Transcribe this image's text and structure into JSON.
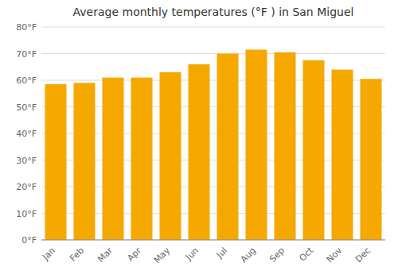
{
  "chart_data": {
    "type": "bar",
    "title": "Average monthly temperatures (°F ) in San Miguel",
    "categories": [
      "Jan",
      "Feb",
      "Mar",
      "Apr",
      "May",
      "Jun",
      "Jul",
      "Aug",
      "Sep",
      "Oct",
      "Nov",
      "Dec"
    ],
    "values": [
      58.5,
      59.0,
      61.0,
      61.0,
      63.0,
      66.0,
      70.0,
      71.5,
      70.5,
      67.5,
      64.0,
      60.5
    ],
    "color": "#F5A800",
    "ylim": [
      0,
      80
    ],
    "yticks": [
      {
        "value": 0,
        "label": "0°F"
      },
      {
        "value": 10,
        "label": "10°F"
      },
      {
        "value": 20,
        "label": "20°F"
      },
      {
        "value": 30,
        "label": "30°F"
      },
      {
        "value": 40,
        "label": "40°F"
      },
      {
        "value": 50,
        "label": "50°F"
      },
      {
        "value": 60,
        "label": "60°F"
      },
      {
        "value": 70,
        "label": "70°F"
      },
      {
        "value": 80,
        "label": "80°F"
      }
    ],
    "grid": true
  }
}
